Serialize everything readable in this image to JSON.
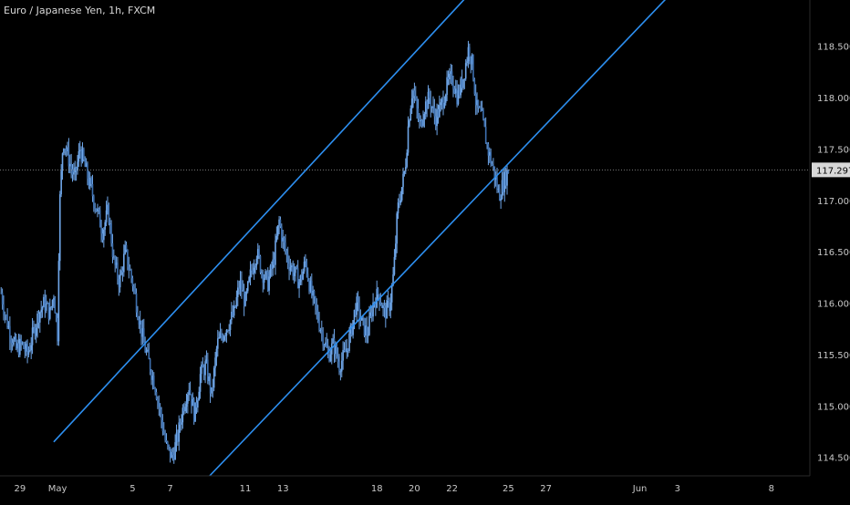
{
  "header": {
    "title": "Euro / Japanese Yen, 1h, FXCM"
  },
  "colors": {
    "background": "#000000",
    "candle": "#6fa6e8",
    "channel": "#2d8ff0",
    "axis_text": "#c8c8c8",
    "price_label_bg": "#d8d8d8",
    "price_label_text": "#000000",
    "current_price_line": "#9a9a9a"
  },
  "chart_data": {
    "type": "line",
    "symbol": "EURJPY",
    "timeframe": "1h",
    "source": "FXCM",
    "x_tick_labels": [
      "29",
      "May",
      "5",
      "7",
      "11",
      "13",
      "18",
      "20",
      "22",
      "25",
      "27",
      "Jun",
      "3",
      "8"
    ],
    "x_tick_positions_days": [
      -2,
      0,
      4,
      6,
      10,
      12,
      17,
      19,
      21,
      24,
      26,
      31,
      33,
      38
    ],
    "y_tick_labels": [
      "118.500",
      "118.000",
      "117.500",
      "117.000",
      "116.500",
      "116.000",
      "115.500",
      "115.000",
      "114.500"
    ],
    "y_ticks": [
      118.5,
      118.0,
      117.5,
      117.0,
      116.5,
      116.0,
      115.5,
      115.0,
      114.5
    ],
    "ylim": [
      114.32,
      118.95
    ],
    "xlim_days": [
      -3.06,
      40.05
    ],
    "current_price": 117.297,
    "current_price_label": "117.297",
    "price_path": [
      [
        -3.0,
        116.1
      ],
      [
        -2.8,
        115.9
      ],
      [
        -2.5,
        115.7
      ],
      [
        -2.2,
        115.55
      ],
      [
        -1.9,
        115.6
      ],
      [
        -1.6,
        115.5
      ],
      [
        -1.3,
        115.7
      ],
      [
        -1.0,
        115.9
      ],
      [
        -0.7,
        116.0
      ],
      [
        -0.4,
        115.9
      ],
      [
        -0.2,
        116.1
      ],
      [
        0.0,
        115.7
      ],
      [
        0.1,
        116.9
      ],
      [
        0.3,
        117.6
      ],
      [
        0.6,
        117.4
      ],
      [
        0.9,
        117.2
      ],
      [
        1.2,
        117.5
      ],
      [
        1.5,
        117.3
      ],
      [
        1.8,
        117.1
      ],
      [
        2.1,
        116.9
      ],
      [
        2.4,
        116.7
      ],
      [
        2.7,
        116.9
      ],
      [
        3.0,
        116.4
      ],
      [
        3.3,
        116.2
      ],
      [
        3.6,
        116.5
      ],
      [
        4.0,
        116.2
      ],
      [
        4.3,
        115.9
      ],
      [
        4.6,
        115.6
      ],
      [
        4.9,
        115.4
      ],
      [
        5.2,
        115.2
      ],
      [
        5.5,
        114.9
      ],
      [
        5.8,
        114.6
      ],
      [
        6.1,
        114.5
      ],
      [
        6.4,
        114.7
      ],
      [
        6.7,
        115.0
      ],
      [
        7.0,
        115.2
      ],
      [
        7.3,
        114.9
      ],
      [
        7.6,
        115.3
      ],
      [
        7.9,
        115.4
      ],
      [
        8.2,
        115.1
      ],
      [
        8.5,
        115.6
      ],
      [
        8.8,
        115.7
      ],
      [
        9.1,
        115.8
      ],
      [
        9.4,
        115.9
      ],
      [
        9.7,
        116.2
      ],
      [
        10.0,
        116.0
      ],
      [
        10.3,
        116.3
      ],
      [
        10.6,
        116.5
      ],
      [
        10.9,
        116.3
      ],
      [
        11.2,
        116.2
      ],
      [
        11.5,
        116.4
      ],
      [
        11.8,
        116.8
      ],
      [
        12.0,
        116.6
      ],
      [
        12.3,
        116.4
      ],
      [
        12.6,
        116.3
      ],
      [
        12.9,
        116.2
      ],
      [
        13.2,
        116.4
      ],
      [
        13.5,
        116.1
      ],
      [
        13.8,
        115.9
      ],
      [
        14.1,
        115.7
      ],
      [
        14.4,
        115.5
      ],
      [
        14.7,
        115.6
      ],
      [
        15.0,
        115.4
      ],
      [
        15.3,
        115.5
      ],
      [
        15.6,
        115.7
      ],
      [
        15.9,
        116.0
      ],
      [
        16.2,
        115.8
      ],
      [
        16.5,
        115.7
      ],
      [
        16.8,
        116.0
      ],
      [
        17.1,
        116.1
      ],
      [
        17.4,
        115.9
      ],
      [
        17.7,
        116.0
      ],
      [
        17.9,
        116.3
      ],
      [
        18.1,
        116.9
      ],
      [
        18.3,
        117.1
      ],
      [
        18.5,
        117.3
      ],
      [
        18.7,
        117.8
      ],
      [
        18.9,
        118.1
      ],
      [
        19.1,
        117.9
      ],
      [
        19.3,
        117.7
      ],
      [
        19.5,
        117.9
      ],
      [
        19.8,
        118.0
      ],
      [
        20.1,
        117.8
      ],
      [
        20.4,
        117.9
      ],
      [
        20.7,
        118.1
      ],
      [
        21.0,
        118.2
      ],
      [
        21.3,
        118.0
      ],
      [
        21.6,
        118.2
      ],
      [
        21.9,
        118.5
      ],
      [
        22.1,
        118.3
      ],
      [
        22.3,
        117.9
      ],
      [
        22.6,
        117.8
      ],
      [
        22.9,
        117.5
      ],
      [
        23.2,
        117.3
      ],
      [
        23.5,
        117.05
      ],
      [
        23.8,
        117.2
      ],
      [
        24.0,
        117.3
      ]
    ],
    "channel_lines": [
      {
        "name": "upper",
        "from": [
          -0.2,
          114.65
        ],
        "to": [
          23.8,
          119.38
        ]
      },
      {
        "name": "lower",
        "from": [
          8.1,
          114.32
        ],
        "to": [
          33.9,
          119.25
        ]
      }
    ],
    "grid": false,
    "price_axis_side": "right"
  }
}
